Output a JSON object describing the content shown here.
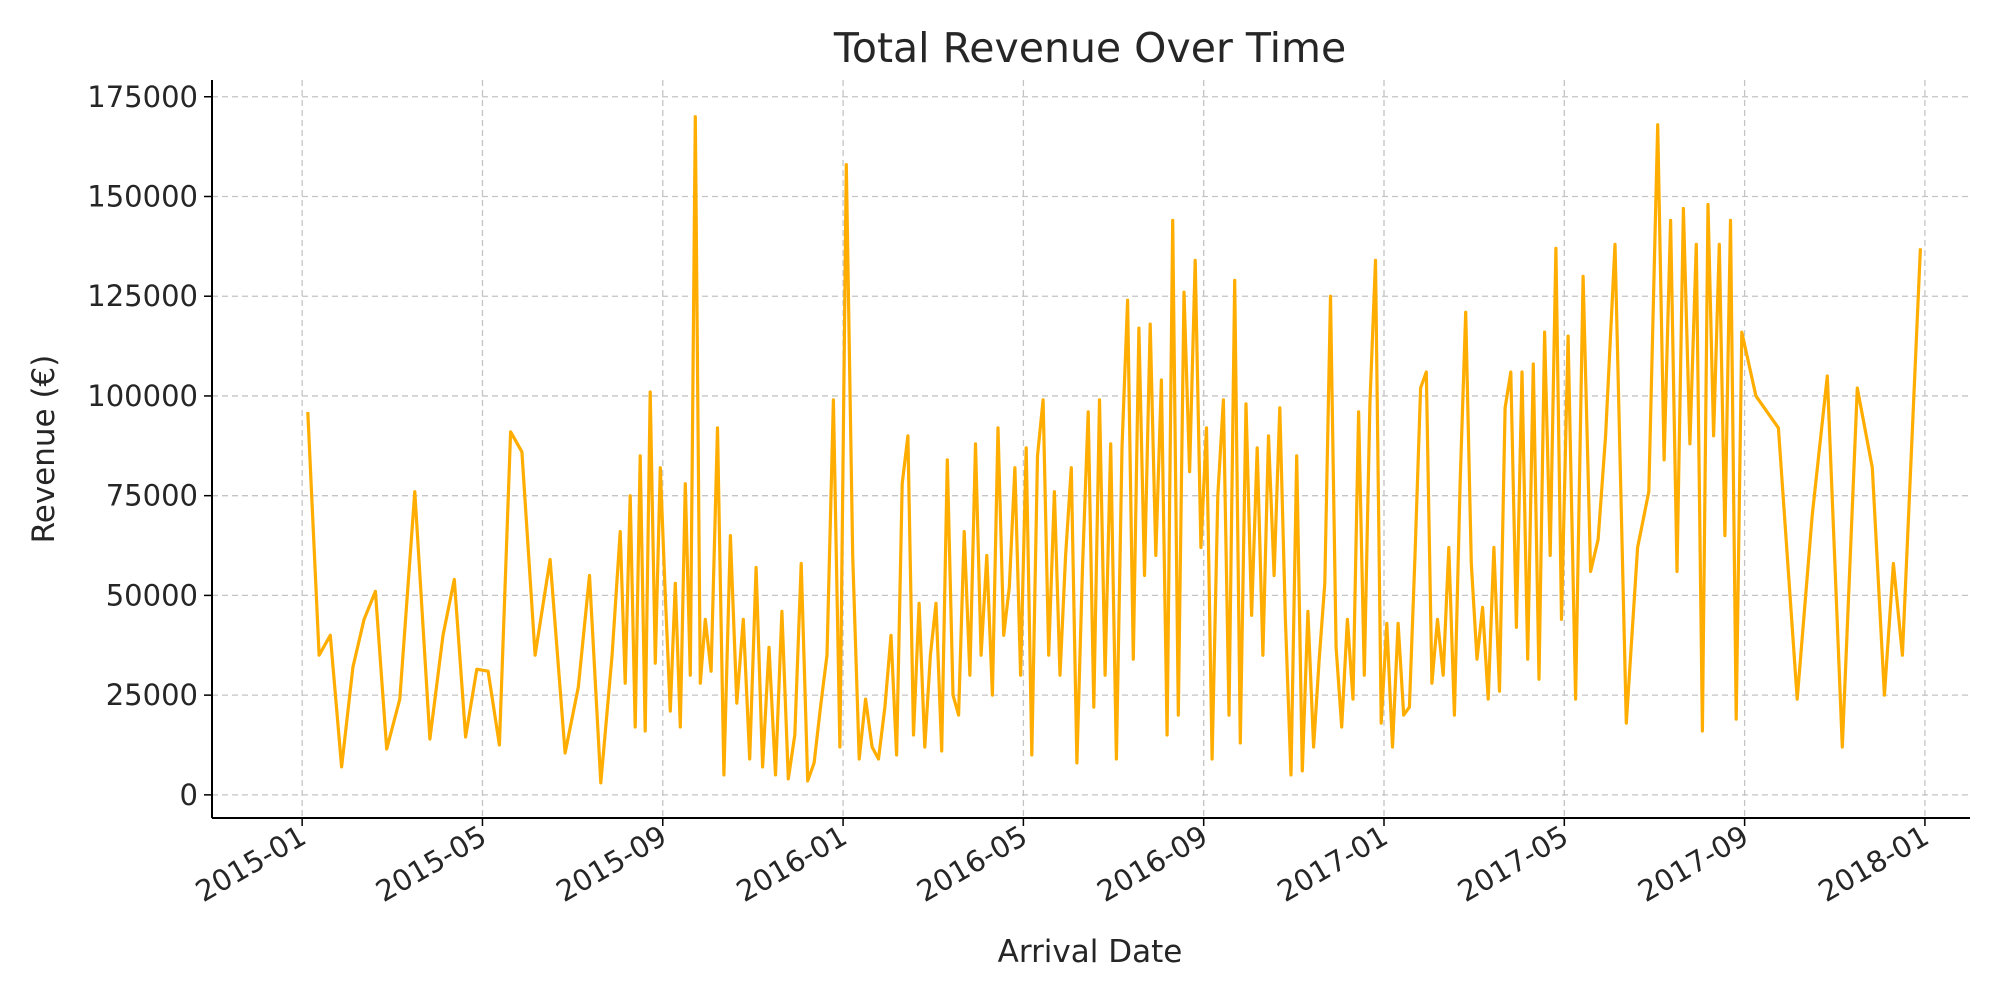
{
  "chart_data": {
    "type": "line",
    "title": "Total Revenue Over Time",
    "x_label": "Arrival Date",
    "y_label": "Revenue (€)",
    "x": [
      "2015-01",
      "2015-01",
      "2015-01",
      "2015-01",
      "2015-02",
      "2015-02",
      "2015-02",
      "2015-02",
      "2015-03",
      "2015-03",
      "2015-03",
      "2015-04",
      "2015-04",
      "2015-04",
      "2015-04",
      "2015-05",
      "2015-05",
      "2015-05",
      "2015-05",
      "2015-06",
      "2015-06",
      "2015-06",
      "2015-07",
      "2015-07",
      "2015-07",
      "2015-07",
      "2015-08",
      "2015-08",
      "2015-08",
      "2015-08",
      "2015-08",
      "2015-08",
      "2015-08",
      "2015-08",
      "2015-08",
      "2015-09",
      "2015-09",
      "2015-09",
      "2015-09",
      "2015-09",
      "2015-09",
      "2015-09",
      "2015-09",
      "2015-09",
      "2015-10",
      "2015-10",
      "2015-10",
      "2015-10",
      "2015-10",
      "2015-10",
      "2015-10",
      "2015-11",
      "2015-11",
      "2015-11",
      "2015-11",
      "2015-11",
      "2015-11",
      "2015-11",
      "2015-12",
      "2015-12",
      "2015-12",
      "2015-12",
      "2015-12",
      "2015-12",
      "2015-12",
      "2016-01",
      "2016-01",
      "2016-01",
      "2016-01",
      "2016-01",
      "2016-01",
      "2016-01",
      "2016-02",
      "2016-02",
      "2016-02",
      "2016-02",
      "2016-02",
      "2016-02",
      "2016-02",
      "2016-02",
      "2016-03",
      "2016-03",
      "2016-03",
      "2016-03",
      "2016-03",
      "2016-03",
      "2016-03",
      "2016-03",
      "2016-04",
      "2016-04",
      "2016-04",
      "2016-04",
      "2016-04",
      "2016-04",
      "2016-04",
      "2016-04",
      "2016-05",
      "2016-05",
      "2016-05",
      "2016-05",
      "2016-05",
      "2016-05",
      "2016-05",
      "2016-05",
      "2016-06",
      "2016-06",
      "2016-06",
      "2016-06",
      "2016-06",
      "2016-06",
      "2016-06",
      "2016-06",
      "2016-07",
      "2016-07",
      "2016-07",
      "2016-07",
      "2016-07",
      "2016-07",
      "2016-07",
      "2016-07",
      "2016-08",
      "2016-08",
      "2016-08",
      "2016-08",
      "2016-08",
      "2016-08",
      "2016-08",
      "2016-08",
      "2016-09",
      "2016-09",
      "2016-09",
      "2016-09",
      "2016-09",
      "2016-09",
      "2016-09",
      "2016-09",
      "2016-10",
      "2016-10",
      "2016-10",
      "2016-10",
      "2016-10",
      "2016-10",
      "2016-10",
      "2016-10",
      "2016-11",
      "2016-11",
      "2016-11",
      "2016-11",
      "2016-11",
      "2016-11",
      "2016-11",
      "2016-11",
      "2016-12",
      "2016-12",
      "2016-12",
      "2016-12",
      "2016-12",
      "2016-12",
      "2016-12",
      "2016-12",
      "2017-01",
      "2017-01",
      "2017-01",
      "2017-01",
      "2017-01",
      "2017-01",
      "2017-01",
      "2017-01",
      "2017-02",
      "2017-02",
      "2017-02",
      "2017-02",
      "2017-02",
      "2017-02",
      "2017-02",
      "2017-02",
      "2017-03",
      "2017-03",
      "2017-03",
      "2017-03",
      "2017-03",
      "2017-03",
      "2017-03",
      "2017-03",
      "2017-04",
      "2017-04",
      "2017-04",
      "2017-04",
      "2017-04",
      "2017-04",
      "2017-04",
      "2017-04",
      "2017-05",
      "2017-05",
      "2017-05",
      "2017-05",
      "2017-05",
      "2017-05",
      "2017-06",
      "2017-06",
      "2017-06",
      "2017-06",
      "2017-07",
      "2017-07",
      "2017-07",
      "2017-07",
      "2017-07",
      "2017-07",
      "2017-07",
      "2017-08",
      "2017-08",
      "2017-08",
      "2017-08",
      "2017-08",
      "2017-08",
      "2017-08",
      "2017-08",
      "2017-09",
      "2017-09",
      "2017-10",
      "2017-10",
      "2017-10",
      "2017-11",
      "2017-11",
      "2017-11",
      "2017-12",
      "2017-12",
      "2017-12",
      "2017-12",
      "2017-12"
    ],
    "values": [
      96000,
      35000,
      40000,
      7000,
      32000,
      44000,
      51000,
      11500,
      24000,
      76000,
      14000,
      40000,
      54000,
      14500,
      31500,
      31000,
      12500,
      91000,
      86000,
      35000,
      59000,
      10500,
      27000,
      55000,
      3000,
      35000,
      66000,
      28000,
      75000,
      17000,
      85000,
      16000,
      101000,
      33000,
      82000,
      50000,
      21000,
      53000,
      17000,
      78000,
      30000,
      170000,
      28000,
      44000,
      31000,
      92000,
      5000,
      65000,
      23000,
      44000,
      9000,
      57000,
      7000,
      37000,
      5000,
      46000,
      4000,
      15000,
      58000,
      3500,
      8000,
      22000,
      35000,
      99000,
      12000,
      158000,
      60000,
      9000,
      24000,
      12000,
      9000,
      22000,
      40000,
      10000,
      78000,
      90000,
      15000,
      48000,
      12000,
      35000,
      48000,
      11000,
      84000,
      25000,
      20000,
      66000,
      30000,
      88000,
      35000,
      60000,
      25000,
      92000,
      40000,
      52000,
      82000,
      30000,
      87000,
      10000,
      85000,
      99000,
      35000,
      76000,
      30000,
      60000,
      82000,
      8000,
      57000,
      96000,
      22000,
      99000,
      30000,
      88000,
      9000,
      87000,
      124000,
      34000,
      117000,
      55000,
      118000,
      60000,
      104000,
      15000,
      144000,
      20000,
      126000,
      81000,
      134000,
      62000,
      92000,
      9000,
      75000,
      99000,
      20000,
      129000,
      13000,
      98000,
      45000,
      87000,
      35000,
      90000,
      55000,
      97000,
      44000,
      5000,
      85000,
      6000,
      46000,
      12000,
      34000,
      53000,
      125000,
      37000,
      17000,
      44000,
      24000,
      96000,
      30000,
      98000,
      134000,
      18000,
      43000,
      12000,
      43000,
      20000,
      22000,
      60000,
      102000,
      106000,
      28000,
      44000,
      30000,
      62000,
      20000,
      78000,
      121000,
      58000,
      34000,
      47000,
      24000,
      62000,
      26000,
      97000,
      106000,
      42000,
      106000,
      34000,
      108000,
      29000,
      116000,
      60000,
      137000,
      44000,
      115000,
      24000,
      130000,
      56000,
      64000,
      90000,
      138000,
      18000,
      62000,
      76000,
      168000,
      84000,
      144000,
      56000,
      147000,
      88000,
      138000,
      16000,
      148000,
      90000,
      138000,
      65000,
      144000,
      19000,
      116000,
      100000,
      92000,
      24000,
      70000,
      105000,
      12000,
      102000,
      82000,
      25000,
      58000,
      35000,
      86000,
      137000
    ],
    "color": "#ffad00",
    "xlim": [
      "2014-11",
      "2018-02"
    ],
    "xticks": [
      "2015-01",
      "2015-05",
      "2015-09",
      "2016-01",
      "2016-05",
      "2016-09",
      "2017-01",
      "2017-05",
      "2017-09",
      "2018-01"
    ],
    "ylim": [
      -5800,
      179200
    ],
    "yticks": [
      0,
      25000,
      50000,
      75000,
      100000,
      125000,
      150000,
      175000
    ],
    "grid": true
  }
}
